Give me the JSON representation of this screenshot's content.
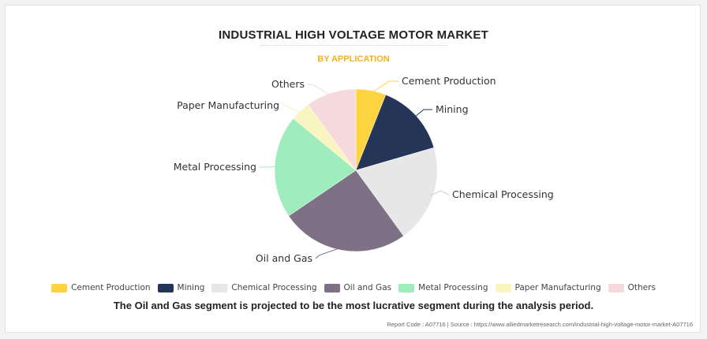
{
  "header": {
    "title": "INDUSTRIAL HIGH VOLTAGE MOTOR MARKET",
    "subtitle": "BY APPLICATION"
  },
  "chart_data": {
    "type": "pie",
    "title": "INDUSTRIAL HIGH VOLTAGE MOTOR MARKET",
    "subtitle": "BY APPLICATION",
    "legend_position": "bottom",
    "slices": [
      {
        "label": "Cement Production",
        "value": 6.0,
        "color": "#fdd33f"
      },
      {
        "label": "Mining",
        "value": 14.5,
        "color": "#243558"
      },
      {
        "label": "Chemical Processing",
        "value": 19.5,
        "color": "#e7e7e7"
      },
      {
        "label": "Oil and Gas",
        "value": 25.5,
        "color": "#7e7085"
      },
      {
        "label": "Metal Processing",
        "value": 20.5,
        "color": "#9fedbd"
      },
      {
        "label": "Paper Manufacturing",
        "value": 4.0,
        "color": "#f9f5c0"
      },
      {
        "label": "Others",
        "value": 10.0,
        "color": "#f6d9dc"
      }
    ]
  },
  "footer": {
    "summary": "The Oil and Gas segment is projected to be the most lucrative segment during the analysis period.",
    "source": "Report Code : A07716  |  Source : https://www.alliedmarketresearch.com/industrial-high-voltage-motor-market-A07716"
  }
}
